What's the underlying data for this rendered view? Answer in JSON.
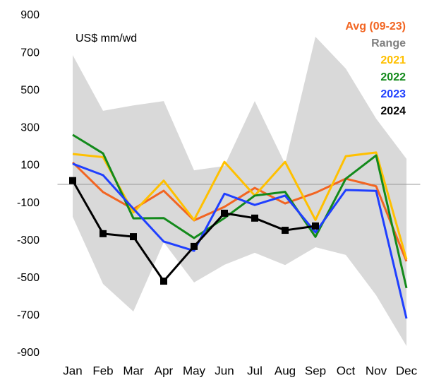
{
  "chart_data": {
    "type": "line",
    "annotation": "US$ mm/wd",
    "categories": [
      "Jan",
      "Feb",
      "Mar",
      "Apr",
      "May",
      "Jun",
      "Jul",
      "Aug",
      "Sep",
      "Oct",
      "Nov",
      "Dec"
    ],
    "ylim": [
      -900,
      900
    ],
    "yticks": [
      -900,
      -700,
      -500,
      -300,
      -100,
      100,
      300,
      500,
      700,
      900
    ],
    "series": [
      {
        "name": "Avg (09-23)",
        "color": "#f26522",
        "values": [
          117,
          -41,
          -132,
          -34,
          -192,
          -120,
          -19,
          -102,
          -45,
          30,
          -10,
          -410
        ]
      },
      {
        "name": "Range",
        "color": "#808080",
        "fill": "#d9d9d9",
        "upper": [
          689,
          392,
          421,
          444,
          75,
          98,
          444,
          109,
          787,
          617,
          350,
          136
        ],
        "lower": [
          -173,
          -531,
          -678,
          -309,
          -523,
          -429,
          -365,
          -430,
          -335,
          -376,
          -591,
          -862
        ]
      },
      {
        "name": "2021",
        "color": "#ffc000",
        "values": [
          162,
          145,
          -150,
          20,
          -190,
          120,
          -60,
          120,
          -190,
          150,
          170,
          -400
        ]
      },
      {
        "name": "2022",
        "color": "#138a1b",
        "values": [
          264,
          165,
          -181,
          -180,
          -286,
          -180,
          -60,
          -40,
          -280,
          30,
          154,
          -553
        ]
      },
      {
        "name": "2023",
        "color": "#1f3fff",
        "values": [
          110,
          49,
          -130,
          -305,
          -354,
          -50,
          -110,
          -60,
          -256,
          -30,
          -35,
          -715
        ]
      },
      {
        "name": "2024",
        "color": "#000000",
        "marker": "square",
        "values": [
          20,
          -263,
          -279,
          -516,
          -331,
          -154,
          -180,
          -245,
          -222,
          null,
          null,
          null
        ]
      }
    ]
  }
}
